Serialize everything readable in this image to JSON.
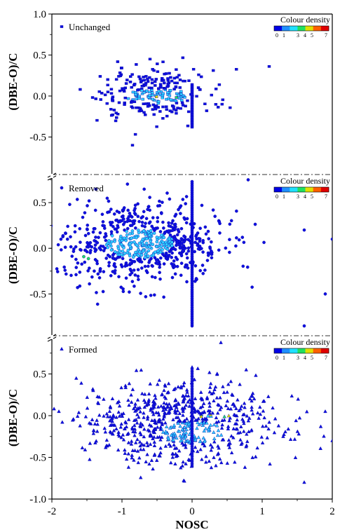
{
  "chart_data": {
    "type": "scatter",
    "xlabel": "NOSC",
    "ylabel": "(DBE-O)/C",
    "x_ticks": [
      "-2",
      "-1",
      "0",
      "1",
      "2"
    ],
    "xlim": [
      -2,
      2
    ],
    "colorbar": {
      "title": "Colour density",
      "ticks": [
        "0",
        "1",
        "3",
        "4",
        "5",
        "7"
      ],
      "colors": [
        "#0000e6",
        "#1f8fff",
        "#20e0ff",
        "#20e060",
        "#e0e000",
        "#ff6000",
        "#e00000"
      ]
    },
    "panels": [
      {
        "legend": "Unchanged",
        "marker": "square",
        "ylim": [
          -0.65,
          1.0
        ],
        "y_ticks": [
          "1.0",
          "0.5",
          "0.0",
          "-0.5"
        ],
        "y_tick_values": [
          1.0,
          0.5,
          0.0,
          -0.5
        ],
        "cloud": {
          "cx": -0.55,
          "cy": 0.02,
          "sx": 0.42,
          "sy": 0.15,
          "count": 260
        },
        "vertical_line": {
          "x": 0.0,
          "y_from": -0.38,
          "y_to": 0.15
        },
        "dense_region": {
          "cx": -0.5,
          "cy": 0.0,
          "rx": 0.45,
          "ry": 0.09
        },
        "hot_region": {
          "cx": -0.4,
          "cy": -0.02,
          "rx": 0.18,
          "ry": 0.02
        },
        "outliers": [
          [
            1.1,
            0.36
          ],
          [
            -0.6,
            0.45
          ],
          [
            -0.85,
            -0.6
          ]
        ]
      },
      {
        "legend": "Removed",
        "marker": "circle",
        "ylim": [
          -0.95,
          0.8
        ],
        "y_ticks": [
          "0.5",
          "0.0",
          "-0.5"
        ],
        "y_tick_values": [
          0.5,
          0.0,
          -0.5
        ],
        "cloud": {
          "cx": -0.7,
          "cy": 0.05,
          "sx": 0.55,
          "sy": 0.22,
          "count": 700
        },
        "vertical_line": {
          "x": 0.0,
          "y_from": -0.85,
          "y_to": 0.75
        },
        "dense_region": {
          "cx": -0.75,
          "cy": 0.05,
          "rx": 0.48,
          "ry": 0.16
        },
        "hot_region": {
          "cx": -1.5,
          "cy": -0.1,
          "rx": 0.15,
          "ry": 0.03
        },
        "outliers": [
          [
            1.6,
            -0.85
          ],
          [
            1.9,
            -0.5
          ],
          [
            0.8,
            0.75
          ],
          [
            1.6,
            0.2
          ],
          [
            2.0,
            0.1
          ]
        ]
      },
      {
        "legend": "Formed",
        "marker": "triangle",
        "ylim": [
          -1.0,
          0.95
        ],
        "y_ticks": [
          "0.5",
          "0.0",
          "-0.5",
          "-1.0"
        ],
        "y_tick_values": [
          0.5,
          0.0,
          -0.5,
          -1.0
        ],
        "cloud": {
          "cx": -0.2,
          "cy": -0.08,
          "sx": 0.7,
          "sy": 0.25,
          "count": 700
        },
        "vertical_line": {
          "x": 0.0,
          "y_from": -0.6,
          "y_to": 0.6
        },
        "dense_region": {
          "cx": 0.0,
          "cy": -0.2,
          "rx": 0.45,
          "ry": 0.13
        },
        "hot_region": {
          "cx": 0.3,
          "cy": 0.0,
          "rx": 0.25,
          "ry": 0.02
        },
        "outliers": [
          [
            1.6,
            -0.8
          ],
          [
            1.9,
            0.05
          ],
          [
            -1.9,
            0.05
          ],
          [
            1.3,
            -0.25
          ],
          [
            2.0,
            -0.3
          ]
        ]
      }
    ]
  }
}
